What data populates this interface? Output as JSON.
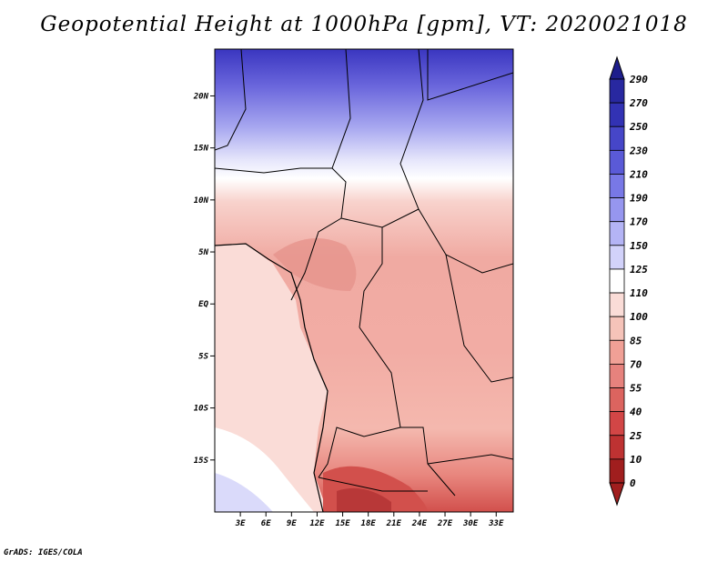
{
  "title": "Geopotential Height at 1000hPa [gpm], VT: 2020021018",
  "credit": "GrADS: IGES/COLA",
  "map": {
    "lon_range": [
      0,
      35
    ],
    "lat_range": [
      -20,
      24.5
    ],
    "lat_ticks": [
      {
        "value": 20,
        "label": "20N"
      },
      {
        "value": 15,
        "label": "15N"
      },
      {
        "value": 10,
        "label": "10N"
      },
      {
        "value": 5,
        "label": "5N"
      },
      {
        "value": 0,
        "label": "EQ"
      },
      {
        "value": -5,
        "label": "5S"
      },
      {
        "value": -10,
        "label": "10S"
      },
      {
        "value": -15,
        "label": "15S"
      }
    ],
    "lon_ticks": [
      {
        "value": 3,
        "label": "3E"
      },
      {
        "value": 6,
        "label": "6E"
      },
      {
        "value": 9,
        "label": "9E"
      },
      {
        "value": 12,
        "label": "12E"
      },
      {
        "value": 15,
        "label": "15E"
      },
      {
        "value": 18,
        "label": "18E"
      },
      {
        "value": 21,
        "label": "21E"
      },
      {
        "value": 24,
        "label": "24E"
      },
      {
        "value": 27,
        "label": "27E"
      },
      {
        "value": 30,
        "label": "30E"
      },
      {
        "value": 33,
        "label": "33E"
      }
    ]
  },
  "colorbar": {
    "levels": [
      {
        "label": "290",
        "color": "#1e1e8c"
      },
      {
        "label": "270",
        "color": "#2828a0"
      },
      {
        "label": "250",
        "color": "#3232b4"
      },
      {
        "label": "230",
        "color": "#4646c8"
      },
      {
        "label": "210",
        "color": "#5a5ad7"
      },
      {
        "label": "190",
        "color": "#7878e6"
      },
      {
        "label": "170",
        "color": "#9696ef"
      },
      {
        "label": "150",
        "color": "#b4b4f5"
      },
      {
        "label": "125",
        "color": "#d2d2fa"
      },
      {
        "label": "110",
        "color": "#ffffff"
      },
      {
        "label": "100",
        "color": "#fadcd7"
      },
      {
        "label": "85",
        "color": "#f5c3b9"
      },
      {
        "label": "70",
        "color": "#f0a096"
      },
      {
        "label": "55",
        "color": "#e6827d"
      },
      {
        "label": "40",
        "color": "#dc645f"
      },
      {
        "label": "25",
        "color": "#d24646"
      },
      {
        "label": "10",
        "color": "#be3232"
      },
      {
        "label": "0",
        "color": "#a01e1e"
      }
    ]
  }
}
